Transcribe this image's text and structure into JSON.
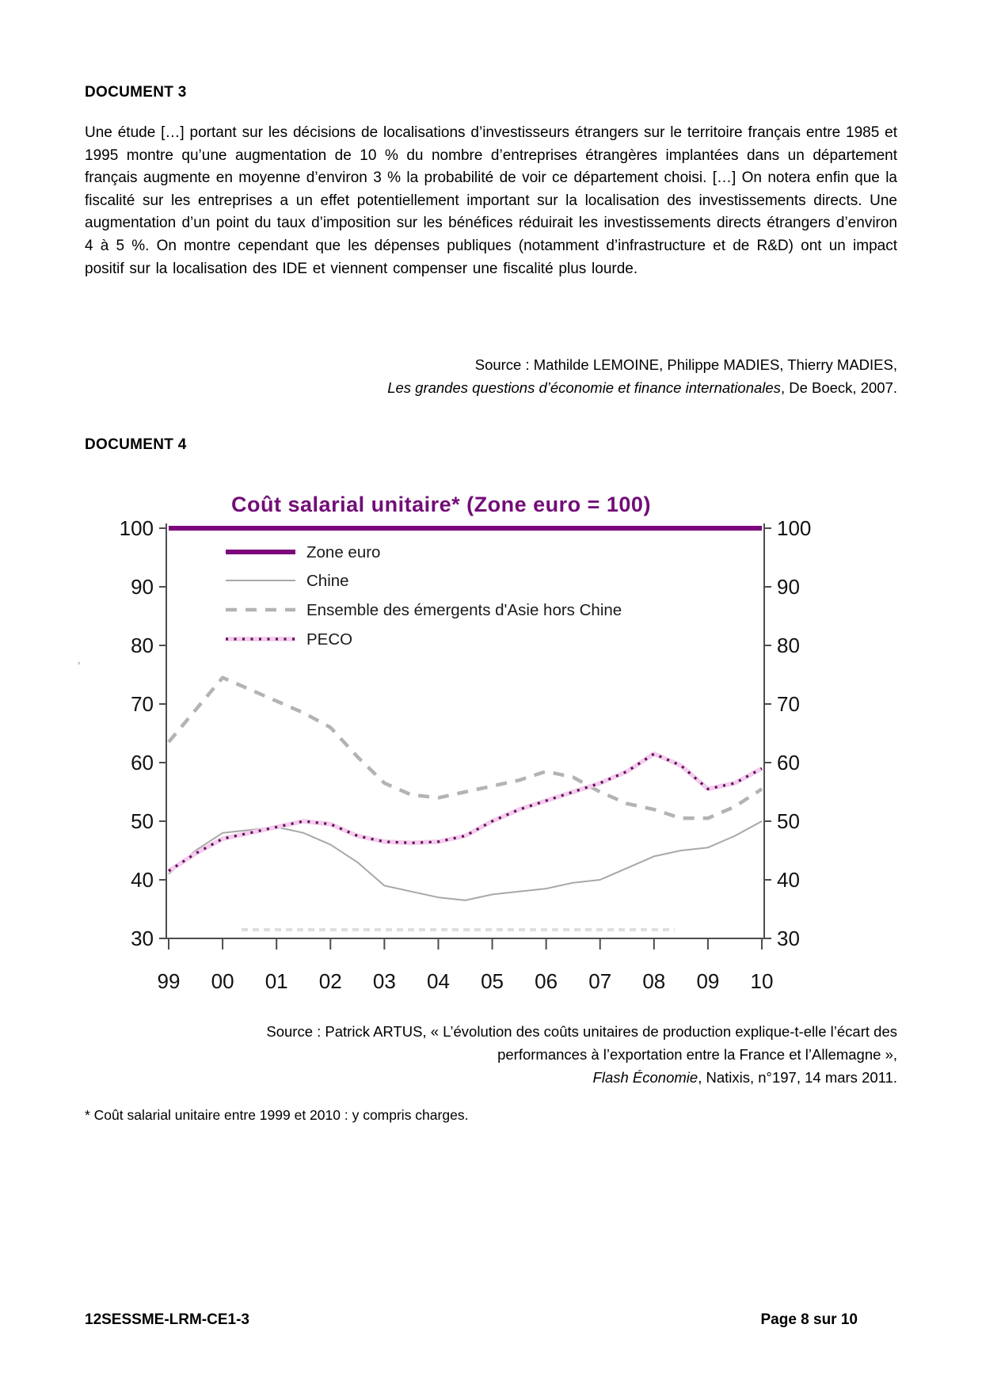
{
  "document3": {
    "heading": "DOCUMENT 3",
    "paragraph": "Une étude […] portant sur les décisions de localisations d’investisseurs étrangers sur le territoire français entre 1985 et 1995 montre qu’une augmentation de 10 % du nombre d’entreprises étrangères implantées dans un département français augmente en moyenne d’environ 3 % la probabilité de voir ce département choisi. […] On notera enfin que la fiscalité sur les entreprises a un effet potentiellement important sur la localisation des investissements directs. Une augmentation d’un point du taux d’imposition sur les bénéfices réduirait les investissements directs étrangers d’environ 4 à 5 %. On montre cependant que les dépenses publiques (notamment d’infrastructure et de R&D) ont un impact positif sur la localisation des IDE et viennent compenser une fiscalité plus lourde.",
    "source": {
      "line1": "Source : Mathilde LEMOINE, Philippe MADIES, Thierry MADIES,",
      "line2_italic": "Les grandes questions d’économie et finance internationales",
      "line2_rest": ", De Boeck, 2007."
    }
  },
  "document4": {
    "heading": "DOCUMENT 4",
    "source": {
      "line1": "Source : Patrick ARTUS, « L’évolution des coûts unitaires de production explique-t-elle l’écart des",
      "line2": "performances à l’exportation entre la France et l’Allemagne »,",
      "line3_italic": "Flash Économie",
      "line3_rest": ", Natixis, n°197, 14 mars 2011."
    },
    "footnote": "* Coût salarial unitaire entre 1999 et 2010 : y compris charges."
  },
  "footer": {
    "left": "12SESSME-LRM-CE1-3",
    "right": "Page 8 sur 10"
  },
  "artifact_mark": "’",
  "chart_data": {
    "type": "line",
    "title": "Coût salarial unitaire* (Zone euro = 100)",
    "title_color": "#730c78",
    "axis_color": "#4d4d4d",
    "ylim": [
      30,
      100
    ],
    "yticks": [
      100,
      90,
      80,
      70,
      60,
      50,
      40,
      30
    ],
    "x_tick_labels": [
      "99",
      "00",
      "01",
      "02",
      "03",
      "04",
      "05",
      "06",
      "07",
      "08",
      "09",
      "10"
    ],
    "grid": false,
    "legend_position": "top-left-inside",
    "x": [
      1999,
      1999.5,
      2000,
      2000.5,
      2001,
      2001.5,
      2002,
      2002.5,
      2003,
      2003.5,
      2004,
      2004.5,
      2005,
      2005.5,
      2006,
      2006.5,
      2007,
      2007.5,
      2008,
      2008.5,
      2009,
      2009.5,
      2010
    ],
    "series": [
      {
        "name": "Zone euro",
        "color": "#7c077c",
        "width": 6,
        "dash": "",
        "halo": "",
        "values": [
          100,
          100,
          100,
          100,
          100,
          100,
          100,
          100,
          100,
          100,
          100,
          100,
          100,
          100,
          100,
          100,
          100,
          100,
          100,
          100,
          100,
          100,
          100
        ]
      },
      {
        "name": "Chine",
        "color": "#a8a8a8",
        "width": 2,
        "dash": "",
        "halo": "",
        "values": [
          41,
          45,
          48,
          48.5,
          49,
          48,
          46,
          43,
          39,
          38,
          37,
          36.5,
          37.5,
          38,
          38.5,
          39.5,
          40,
          42,
          44,
          45,
          45.5,
          47.5,
          50
        ]
      },
      {
        "name": "Ensemble des émergents d'Asie hors Chine",
        "color": "#b3b3b3",
        "width": 4.5,
        "dash": "14 11",
        "halo": "",
        "values": [
          63.5,
          69,
          74.5,
          72.5,
          70.5,
          68.5,
          66,
          61,
          56.5,
          54.5,
          54,
          55,
          56,
          57,
          58.5,
          57.5,
          55,
          53,
          52,
          50.5,
          50.5,
          52.5,
          55.5
        ]
      },
      {
        "name": "PECO",
        "color": "#64095a",
        "width": 3.2,
        "dash": "3 7.5",
        "halo": "#f2cdec",
        "values": [
          41.5,
          44.5,
          47,
          48,
          49,
          50,
          49.5,
          47.5,
          46.5,
          46.3,
          46.5,
          47.5,
          50,
          52,
          53.5,
          55,
          56.5,
          58.5,
          61.5,
          59.5,
          55.5,
          56.5,
          59
        ]
      }
    ]
  }
}
